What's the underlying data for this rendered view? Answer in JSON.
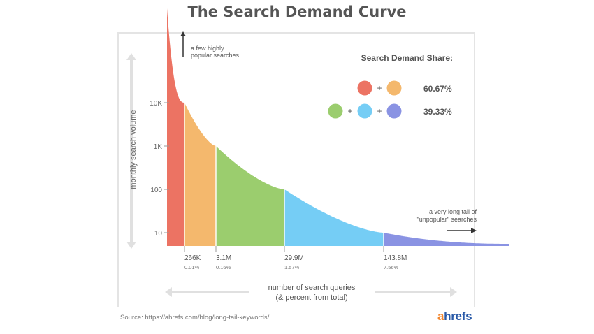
{
  "header": {
    "title": "The Search Demand Curve"
  },
  "annotations": {
    "head": [
      "a few highly",
      "popular searches"
    ],
    "tail": [
      "a very long tail of",
      "\"unpopular\" searches"
    ]
  },
  "legend": {
    "title": "Search Demand Share:",
    "rows": [
      {
        "dots": [
          "#ec7363",
          "#f4b86d"
        ],
        "value": "60.67%"
      },
      {
        "dots": [
          "#9bcd6e",
          "#75cdf5",
          "#8a93e3"
        ],
        "value": "39.33%"
      }
    ],
    "plus": "+",
    "equals": "="
  },
  "colors": {
    "seg1": "#ec7363",
    "seg2": "#f4b86d",
    "seg3": "#9bcd6e",
    "seg4": "#75cdf5",
    "seg5": "#8a93e3"
  },
  "chart_data": {
    "type": "area",
    "title": "The Search Demand Curve",
    "xlabel": [
      "number of search queries",
      "(& percent from total)"
    ],
    "ylabel": "monthly search volume",
    "y_scale": "log",
    "y_ticks": [
      "10K",
      "1K",
      "100",
      "10"
    ],
    "y_tick_values": [
      10000,
      1000,
      100,
      10
    ],
    "segment_boundaries": [
      {
        "label": "266K",
        "percent": "0.01%"
      },
      {
        "label": "3.1M",
        "percent": "0.16%"
      },
      {
        "label": "29.9M",
        "percent": "1.57%"
      },
      {
        "label": "143.8M",
        "percent": "7.56%"
      }
    ],
    "curve_volume_at_boundaries": [
      10000,
      1000,
      100,
      10
    ],
    "segments": [
      {
        "color": "#ec7363",
        "share_group": 1
      },
      {
        "color": "#f4b86d",
        "share_group": 1
      },
      {
        "color": "#9bcd6e",
        "share_group": 2
      },
      {
        "color": "#75cdf5",
        "share_group": 2
      },
      {
        "color": "#8a93e3",
        "share_group": 2
      }
    ]
  },
  "footer": {
    "source": "Source: https://ahrefs.com/blog/long-tail-keywords/",
    "logo_a": "a",
    "logo_rest": "hrefs"
  }
}
